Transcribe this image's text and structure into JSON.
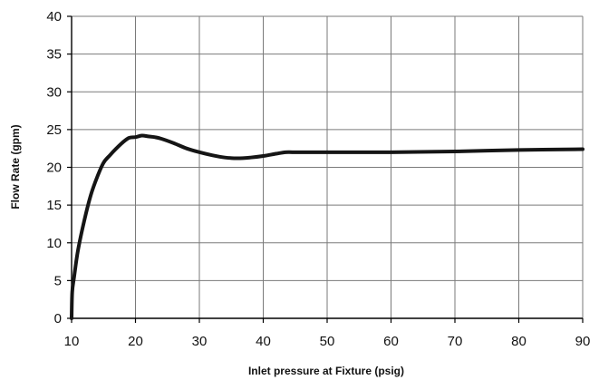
{
  "chart_data": {
    "type": "line",
    "title": "",
    "xlabel": "Inlet pressure at Fixture (psig)",
    "ylabel": "Flow Rate (gpm)",
    "xlim": [
      10,
      90
    ],
    "ylim": [
      0,
      40
    ],
    "x_ticks": [
      10,
      20,
      30,
      40,
      50,
      60,
      70,
      80,
      90
    ],
    "y_ticks": [
      0,
      5,
      10,
      15,
      20,
      25,
      30,
      35,
      40
    ],
    "x_tick_labels": [
      "10",
      "20",
      "30",
      "40",
      "50",
      "60",
      "70",
      "80",
      "90"
    ],
    "y_tick_labels": [
      "0",
      "5",
      "10",
      "15",
      "20",
      "25",
      "30",
      "35",
      "40"
    ],
    "grid": true,
    "legend": "none",
    "series": [
      {
        "color": "#151515",
        "x": [
          10.0,
          10.1,
          10.4,
          11.0,
          12.0,
          13.0,
          14.0,
          15.0,
          16.0,
          17.0,
          18.0,
          19.0,
          20.0,
          21.0,
          22.0,
          23.0,
          24.0,
          26.0,
          28.0,
          30.0,
          32.0,
          34.0,
          36.0,
          38.0,
          40.0,
          42.0,
          43.5,
          45.0,
          50.0,
          60.0,
          70.0,
          80.0,
          90.0
        ],
        "y": [
          0.0,
          3.5,
          5.5,
          9.0,
          13.0,
          16.3,
          18.7,
          20.6,
          21.6,
          22.5,
          23.3,
          23.9,
          24.0,
          24.2,
          24.1,
          24.0,
          23.8,
          23.2,
          22.5,
          22.0,
          21.6,
          21.3,
          21.2,
          21.3,
          21.5,
          21.8,
          22.0,
          22.0,
          22.0,
          22.0,
          22.1,
          22.3,
          22.4
        ]
      }
    ]
  }
}
